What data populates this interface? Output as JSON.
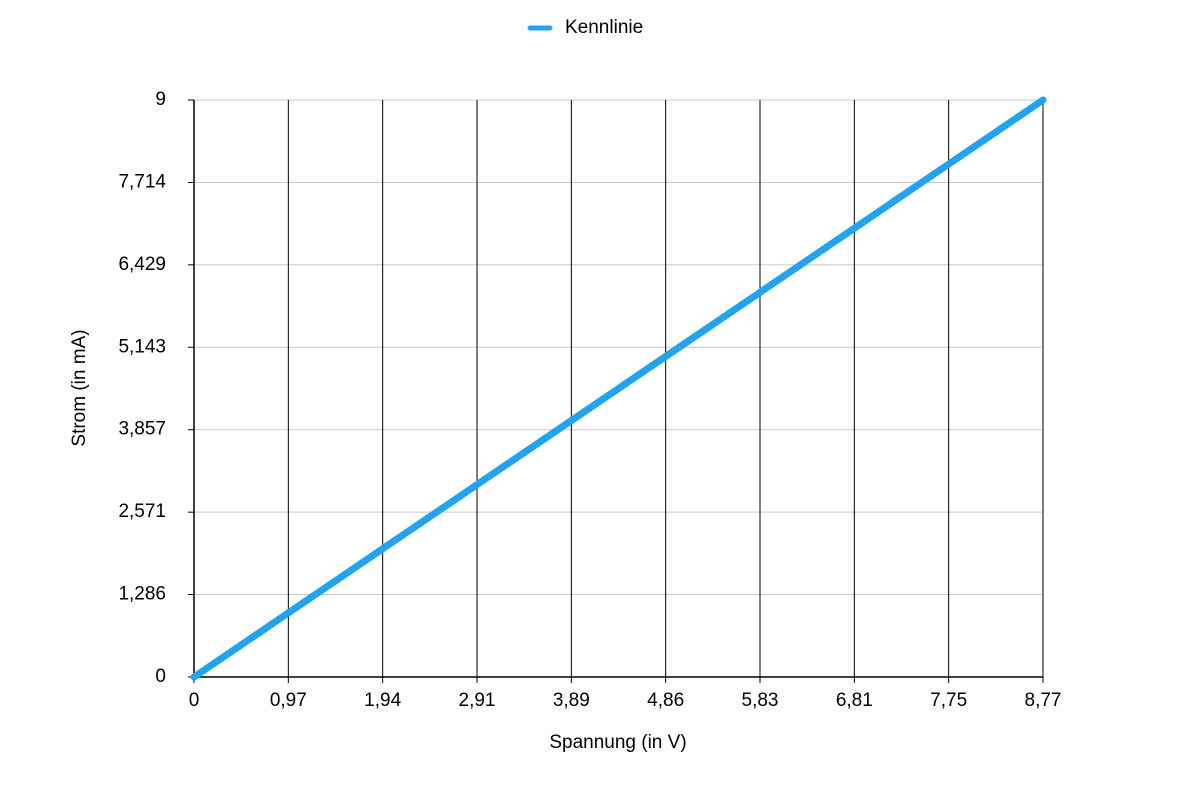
{
  "chart_data": {
    "type": "line",
    "categories": [
      "0",
      "0,97",
      "1,94",
      "2,91",
      "3,89",
      "4,86",
      "5,83",
      "6,81",
      "7,75",
      "8,77"
    ],
    "series": [
      {
        "name": "Kennlinie",
        "color": "#22a3f0",
        "values": [
          0,
          1,
          2,
          3,
          4,
          5,
          6,
          7,
          8,
          9
        ]
      }
    ],
    "x_label": "Spannung (in V)",
    "y_label": "Strom (in mA)",
    "ylim": [
      0,
      9
    ],
    "yticks": [
      0,
      {
        "value": 1.286,
        "label": "1,286"
      },
      {
        "value": 2.571,
        "label": "2,571"
      },
      {
        "value": 3.857,
        "label": "3,857"
      },
      {
        "value": 5.143,
        "label": "5,143"
      },
      {
        "value": 6.429,
        "label": "6,429"
      },
      {
        "value": 7.714,
        "label": "7,714"
      },
      9
    ],
    "grid": true,
    "legend": "top"
  }
}
